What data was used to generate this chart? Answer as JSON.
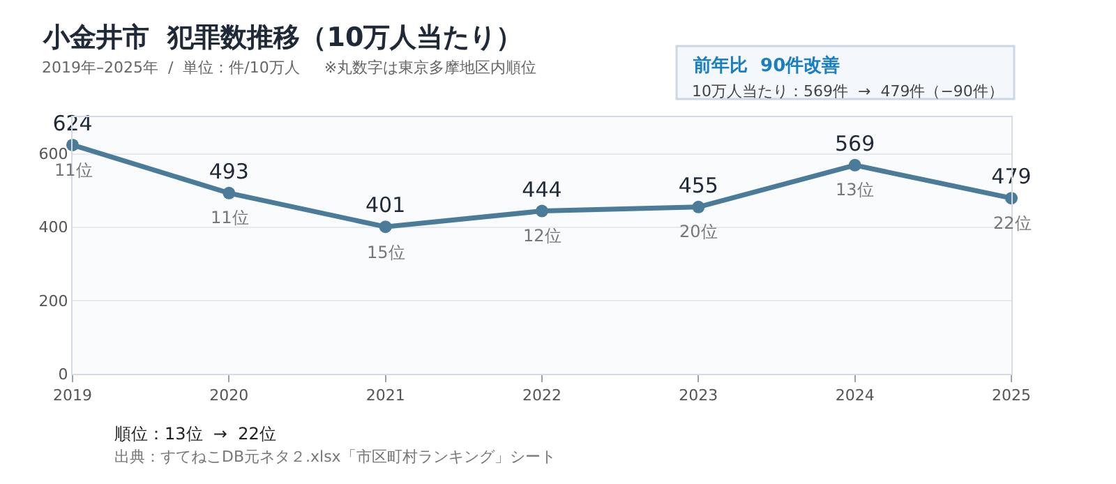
{
  "chart_data": {
    "type": "line",
    "title": "小金井市  犯罪数推移（10万人当たり）",
    "subtitle": "2019年–2025年  /  単位：件/10万人     ※丸数字は東京多摩地区内順位",
    "categories": [
      "2019",
      "2020",
      "2021",
      "2022",
      "2023",
      "2024",
      "2025"
    ],
    "series": [
      {
        "color": "#4a7c99",
        "values": [
          624,
          493,
          401,
          444,
          455,
          569,
          479
        ]
      }
    ],
    "ylim": [
      0,
      700
    ],
    "yticks": [
      0,
      200,
      400,
      600
    ],
    "grid": "y",
    "marker": "circle",
    "line_style": "solid",
    "data_labels": true,
    "annotations": [
      "前年比  90件改善",
      "10万人当たり：569件  →  479件（−90件）",
      "順位：13位  →  22位",
      "出典：すてねこDB元ネタ２.xlsx「市区町村ランキング」シート",
      {
        "text": "11位",
        "x": "2019",
        "y": 624
      },
      {
        "text": "11位",
        "x": "2020",
        "y": 493
      },
      {
        "text": "15位",
        "x": "2021",
        "y": 401
      },
      {
        "text": "12位",
        "x": "2022",
        "y": 444
      },
      {
        "text": "20位",
        "x": "2023",
        "y": 455
      },
      {
        "text": "13位",
        "x": "2024",
        "y": 569
      },
      {
        "text": "22位",
        "x": "2025",
        "y": 479
      }
    ]
  }
}
